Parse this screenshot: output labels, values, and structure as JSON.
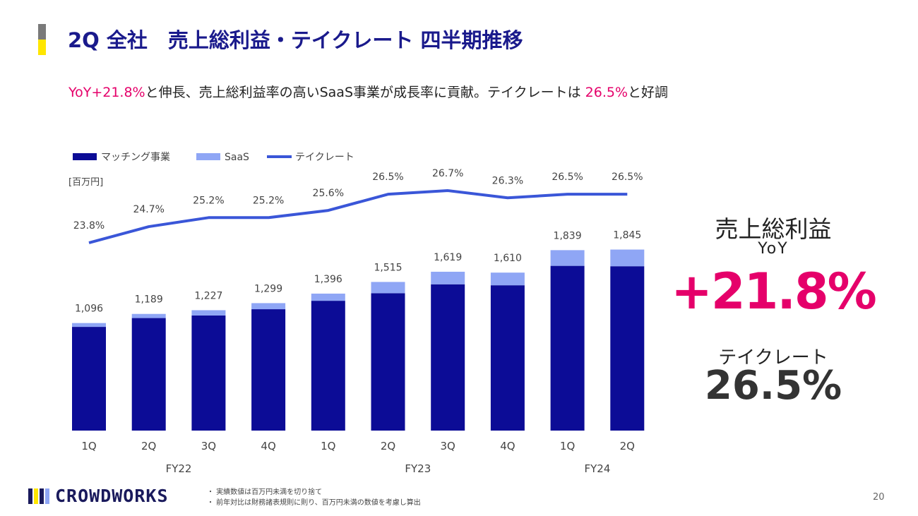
{
  "header": {
    "title": "2Q 全社　売上総利益・テイクレート 四半期推移",
    "subtitle_pre": "YoY+21.8%",
    "subtitle_mid": "と伸長、売上総利益率の高いSaaS事業が成長率に貢献。テイクレートは ",
    "subtitle_rate": "26.5%",
    "subtitle_post": "と好調"
  },
  "chart_data": {
    "type": "bar",
    "stacked": true,
    "unit_label": "[百万円]",
    "categories": [
      "1Q",
      "2Q",
      "3Q",
      "4Q",
      "1Q",
      "2Q",
      "3Q",
      "4Q",
      "1Q",
      "2Q"
    ],
    "fiscal_years": [
      "FY22",
      "FY23",
      "FY24"
    ],
    "series": [
      {
        "name": "マッチング事業",
        "color": "#0c0c96",
        "values": [
          1057,
          1147,
          1173,
          1237,
          1323,
          1400,
          1491,
          1481,
          1679,
          1675
        ]
      },
      {
        "name": "SaaS",
        "color": "#8fa6f5",
        "values": [
          39,
          42,
          54,
          62,
          73,
          115,
          128,
          129,
          160,
          170
        ]
      }
    ],
    "totals": [
      1096,
      1189,
      1227,
      1299,
      1396,
      1515,
      1619,
      1610,
      1839,
      1845
    ],
    "total_labels": [
      "1,096",
      "1,189",
      "1,227",
      "1,299",
      "1,396",
      "1,515",
      "1,619",
      "1,610",
      "1,839",
      "1,845"
    ],
    "line": {
      "name": "テイクレート",
      "color": "#3a56d8",
      "values": [
        23.8,
        24.7,
        25.2,
        25.2,
        25.6,
        26.5,
        26.7,
        26.3,
        26.5,
        26.5
      ],
      "labels": [
        "23.8%",
        "24.7%",
        "25.2%",
        "25.2%",
        "25.6%",
        "26.5%",
        "26.7%",
        "26.3%",
        "26.5%",
        "26.5%"
      ]
    },
    "legend_position": "top-left",
    "grid": false
  },
  "side": {
    "gp_label": "売上総利益",
    "yoy_label": "YoY",
    "growth": "+21.8%",
    "take_label": "テイクレート",
    "take_value": "26.5%"
  },
  "footer": {
    "logo_text": "CROWDWORKS",
    "note1": "・ 実績数値は百万円未満を切り捨て",
    "note2": "・ 前年対比は財務諸表規則に則り、百万円未満の数値を考慮し算出",
    "page": "20"
  },
  "colors": {
    "brand_navy": "#1a1a8c",
    "accent_pink": "#e5006a",
    "accent_yellow": "#ffe600",
    "logo_mark": [
      "#1a1a5c",
      "#ffe600",
      "#1a1a5c",
      "#8fa6f5"
    ]
  }
}
